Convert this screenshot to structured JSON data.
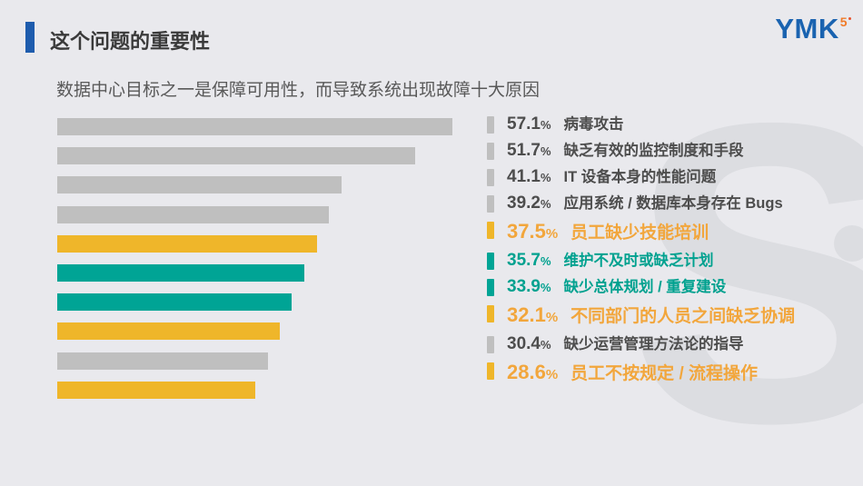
{
  "slide": {
    "title": "这个问题的重要性",
    "subtitle": "数据中心目标之一是保障可用性，而导致系统出现故障十大原因",
    "logo": {
      "text": "YMK",
      "superscript": "5"
    },
    "watermark_glyph": "S",
    "colors": {
      "background": "#E9E9ED",
      "accent_bar": "#1E5CAD",
      "title_text": "#3A3A3A",
      "subtitle_text": "#595959",
      "logo_blue": "#1A63B0",
      "logo_orange": "#F07B28",
      "watermark": "#DCDDE1"
    }
  },
  "chart_data": {
    "type": "bar",
    "orientation": "horizontal",
    "unit": "%",
    "percent_sign": "%",
    "xlim": [
      0,
      57.1
    ],
    "legend": "none",
    "grid": false,
    "items": [
      {
        "value": 57.1,
        "label": "病毒攻击",
        "category": "gray"
      },
      {
        "value": 51.7,
        "label": "缺乏有效的监控制度和手段",
        "category": "gray"
      },
      {
        "value": 41.1,
        "label": "IT 设备本身的性能问题",
        "category": "gray"
      },
      {
        "value": 39.2,
        "label": "应用系统 / 数据库本身存在 Bugs",
        "category": "gray"
      },
      {
        "value": 37.5,
        "label": "员工缺少技能培训",
        "category": "orange"
      },
      {
        "value": 35.7,
        "label": "维护不及时或缺乏计划",
        "category": "teal"
      },
      {
        "value": 33.9,
        "label": "缺少总体规划 / 重复建设",
        "category": "teal"
      },
      {
        "value": 32.1,
        "label": "不同部门的人员之间缺乏协调",
        "category": "orange"
      },
      {
        "value": 30.4,
        "label": "缺少运营管理方法论的指导",
        "category": "gray"
      },
      {
        "value": 28.6,
        "label": "员工不按规定 / 流程操作",
        "category": "orange"
      }
    ],
    "bar_colors": {
      "gray": "#BFBFBF",
      "orange": "#EFB62A",
      "teal": "#00A495"
    },
    "text_colors": {
      "gray": "#4D4D4D",
      "orange": "#F2A63C",
      "teal": "#00A18F"
    }
  }
}
